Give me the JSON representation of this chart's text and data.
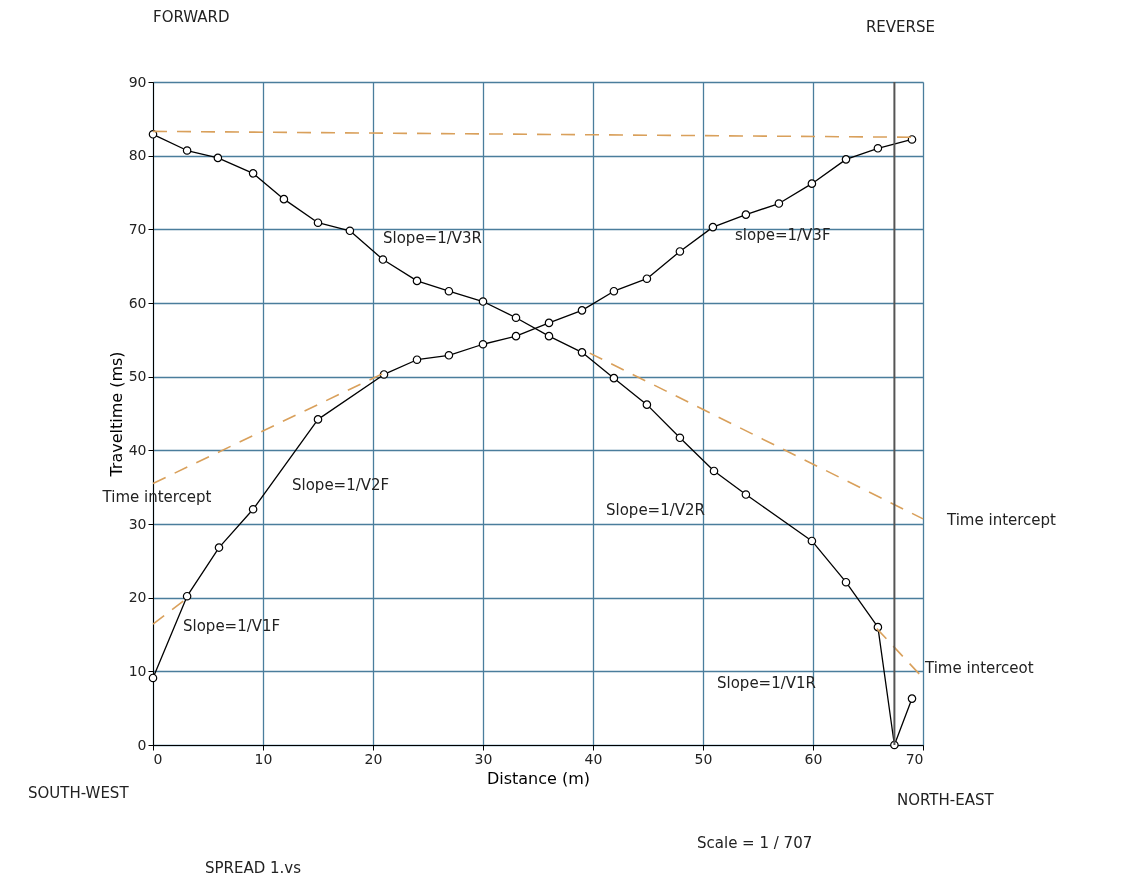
{
  "chart_data": {
    "type": "line",
    "xlabel": "Distance (m)",
    "ylabel": "Traveltime (ms)",
    "xlim": [
      0,
      70
    ],
    "xticks": [
      0,
      10,
      20,
      30,
      40,
      50,
      60,
      70
    ],
    "ylim": [
      0,
      90
    ],
    "yticks": [
      0,
      10,
      20,
      30,
      40,
      50,
      60,
      70,
      80,
      90
    ],
    "grid": true,
    "series": [
      {
        "color": "#000000",
        "marker": "circle",
        "line_style": "solid",
        "x": [
          0,
          3.1,
          6.0,
          9.1,
          15.0,
          21.0,
          24.0,
          26.9,
          30.0,
          33.0,
          36.0,
          39.0,
          41.9,
          44.9,
          47.9,
          50.9,
          53.9,
          56.9,
          59.9,
          63.0,
          65.9,
          69.0
        ],
        "values": [
          9.1,
          20.2,
          26.8,
          32.0,
          44.2,
          50.3,
          52.3,
          52.9,
          54.4,
          55.5,
          57.3,
          59.0,
          61.6,
          63.3,
          67.0,
          70.3,
          72.0,
          73.5,
          76.2,
          79.5,
          81.0,
          82.2
        ]
      },
      {
        "color": "#000000",
        "marker": "circle",
        "line_style": "solid",
        "x": [
          0,
          3.1,
          5.9,
          9.1,
          11.9,
          15.0,
          17.9,
          20.9,
          24.0,
          26.9,
          30.0,
          33.0,
          36.0,
          39.0,
          41.9,
          44.9,
          47.9,
          51.0,
          53.9,
          59.9,
          63.0,
          65.9,
          67.4,
          69.0
        ],
        "values": [
          82.9,
          80.7,
          79.7,
          77.6,
          74.1,
          70.9,
          69.8,
          65.9,
          63.0,
          61.6,
          60.2,
          58.0,
          55.5,
          53.3,
          49.8,
          46.2,
          41.7,
          37.2,
          34.0,
          27.7,
          22.1,
          16.0,
          0,
          6.3
        ]
      },
      {
        "color": "#d9a05b",
        "marker": "none",
        "line_style": "dashed",
        "x": [
          0,
          69
        ],
        "values": [
          83.3,
          82.5
        ]
      },
      {
        "color": "#d9a05b",
        "marker": "none",
        "line_style": "dashed",
        "x": [
          0,
          21
        ],
        "values": [
          35.5,
          50.5
        ]
      },
      {
        "color": "#d9a05b",
        "marker": "none",
        "line_style": "dashed",
        "x": [
          0,
          2.9
        ],
        "values": [
          16.4,
          19.7
        ]
      },
      {
        "color": "#d9a05b",
        "marker": "none",
        "line_style": "dashed",
        "x": [
          39.7,
          70
        ],
        "values": [
          53.2,
          30.7
        ]
      },
      {
        "color": "#d9a05b",
        "marker": "none",
        "line_style": "dashed",
        "x": [
          65.8,
          70
        ],
        "values": [
          15.8,
          9.1
        ]
      }
    ],
    "ref_lines": [
      {
        "axis": "x",
        "value": 67.4,
        "color": "#555555"
      }
    ],
    "annotations": [
      "FORWARD",
      "REVERSE",
      "SOUTH-WEST",
      "NORTH-EAST",
      "Scale = 1 / 707",
      "SPREAD 1.vs",
      "Slope=1/V3R",
      "slope=1/V3F",
      "Slope=1/V2F",
      "Slope=1/V1F",
      "Slope=1/V2R",
      "Slope=1/V1R",
      "Time intercept",
      "Time intercept",
      "Time interceot"
    ]
  }
}
